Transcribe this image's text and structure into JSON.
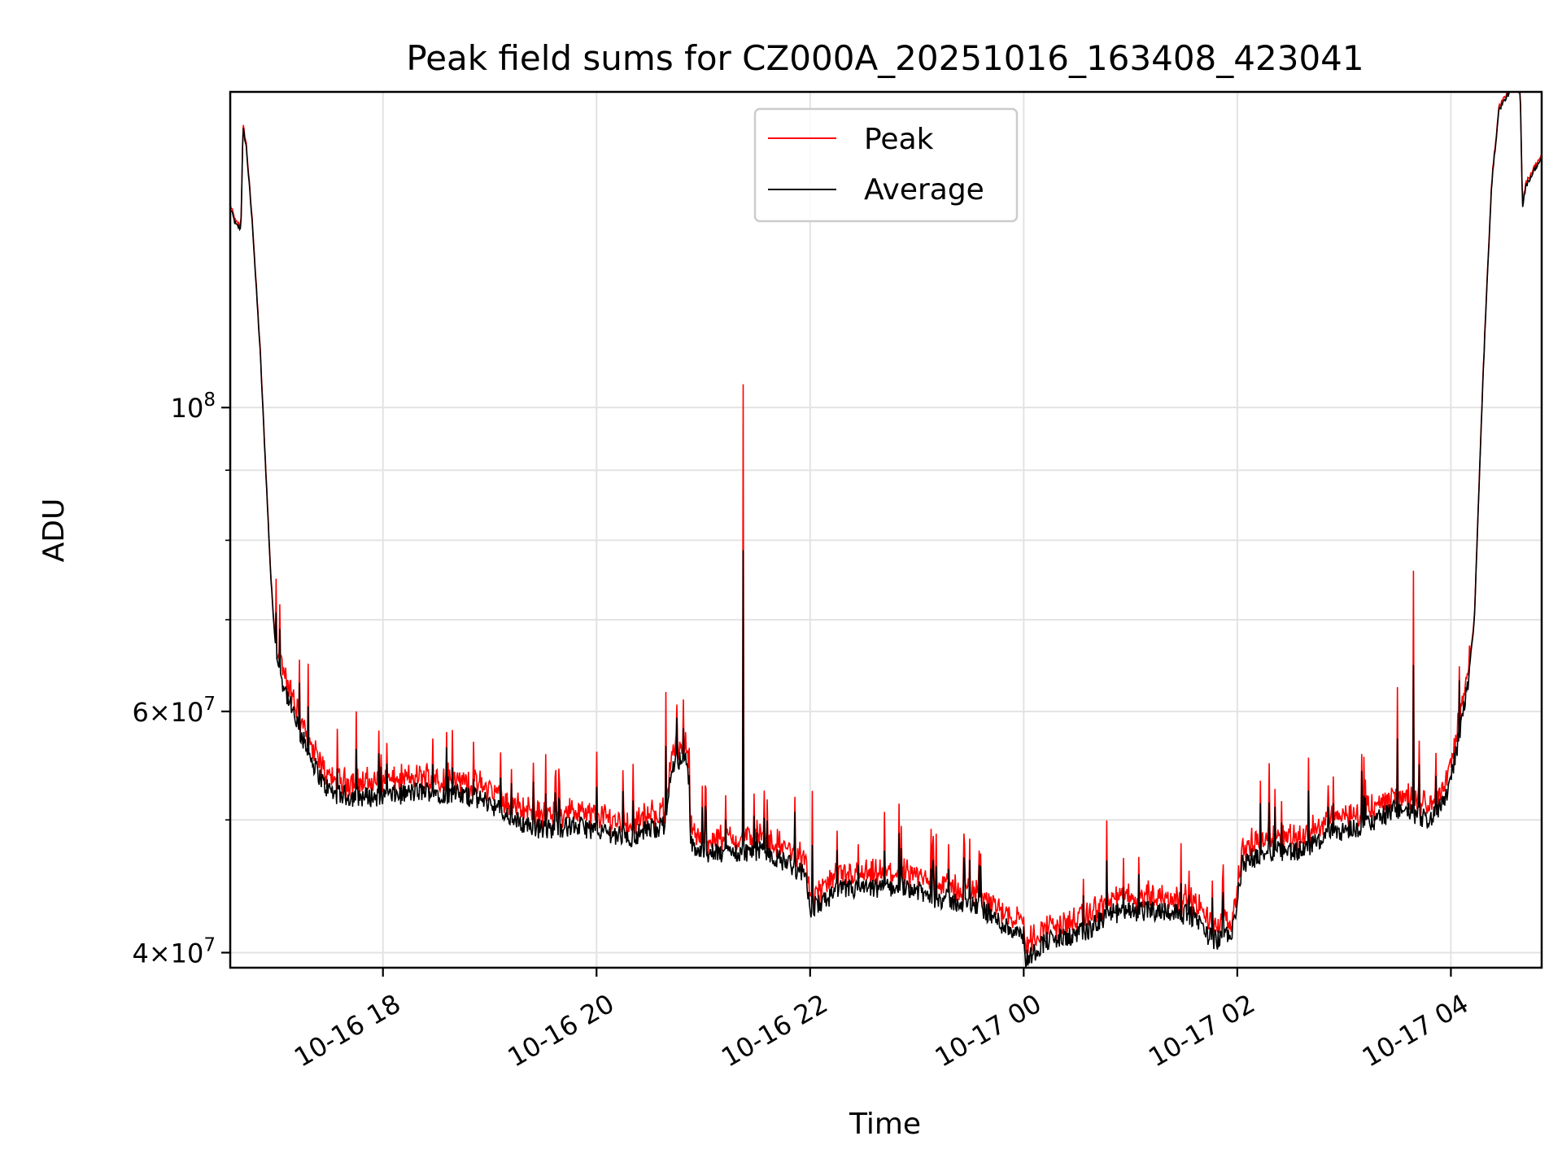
{
  "chart_data": {
    "type": "line",
    "title": "Peak field sums for CZ000A_20251016_163408_423041",
    "xlabel": "Time",
    "ylabel": "ADU",
    "yscale": "log",
    "grid": true,
    "legend_position": "top-center",
    "xlim_hours": [
      16.57,
      28.85
    ],
    "ylim": [
      39000000,
      170000000
    ],
    "x_ticks": [
      {
        "label": "10-16 18",
        "hour": 18
      },
      {
        "label": "10-16 20",
        "hour": 20
      },
      {
        "label": "10-16 22",
        "hour": 22
      },
      {
        "label": "10-17 00",
        "hour": 24
      },
      {
        "label": "10-17 02",
        "hour": 26
      },
      {
        "label": "10-17 04",
        "hour": 28
      }
    ],
    "y_ticks": [
      {
        "value": 100000000,
        "base": "10",
        "exp": "8"
      },
      {
        "value": 60000000,
        "base": "6×10",
        "exp": "7"
      },
      {
        "value": 40000000,
        "base": "4×10",
        "exp": "7"
      }
    ],
    "y_minor_gridlines": [
      50000000,
      70000000,
      80000000,
      90000000
    ],
    "series": [
      {
        "name": "Peak",
        "color": "#ff0000"
      },
      {
        "name": "Average",
        "color": "#000000"
      }
    ],
    "average_hours": [
      16.57,
      16.62,
      16.67,
      16.69,
      16.72,
      16.78,
      16.85,
      16.95,
      17.0,
      17.05,
      17.12,
      17.2,
      17.3,
      17.45,
      17.55,
      17.7,
      18.0,
      18.4,
      18.8,
      19.0,
      19.2,
      19.5,
      19.8,
      20.1,
      20.3,
      20.5,
      20.65,
      20.7,
      20.85,
      20.88,
      21.0,
      21.3,
      21.5,
      21.8,
      21.95,
      22.0,
      22.3,
      22.6,
      22.9,
      23.1,
      23.4,
      23.6,
      23.75,
      23.9,
      23.97,
      24.02,
      24.2,
      24.4,
      24.6,
      24.8,
      25.0,
      25.3,
      25.6,
      25.75,
      25.85,
      25.95,
      26.05,
      26.3,
      26.6,
      26.9,
      27.2,
      27.5,
      27.8,
      27.95,
      28.05,
      28.15,
      28.22,
      28.3,
      28.38,
      28.45,
      28.55,
      28.6,
      28.65,
      28.67,
      28.7,
      28.8,
      28.85
    ],
    "average_values": [
      140000000.0,
      136000000.0,
      135000000.0,
      160000000.0,
      155000000.0,
      135000000.0,
      110000000.0,
      75000000.0,
      66000000.0,
      63500000.0,
      61000000.0,
      58500000.0,
      56000000.0,
      53000000.0,
      52200000.0,
      52000000.0,
      52000000.0,
      52500000.0,
      52000000.0,
      51500000.0,
      50000000.0,
      49200000.0,
      49500000.0,
      49000000.0,
      48500000.0,
      49300000.0,
      49500000.0,
      55000000.0,
      55500000.0,
      48000000.0,
      47200000.0,
      47300000.0,
      47500000.0,
      46500000.0,
      45500000.0,
      43000000.0,
      44500000.0,
      44500000.0,
      44800000.0,
      44000000.0,
      43500000.0,
      43200000.0,
      42200000.0,
      41500000.0,
      41800000.0,
      39500000.0,
      40800000.0,
      41000000.0,
      41500000.0,
      42700000.0,
      42800000.0,
      43000000.0,
      42500000.0,
      41000000.0,
      40800000.0,
      41300000.0,
      46500000.0,
      47500000.0,
      47500000.0,
      49000000.0,
      49500000.0,
      51000000.0,
      50000000.0,
      52000000.0,
      56000000.0,
      62000000.0,
      70000000.0,
      105000000.0,
      145000000.0,
      165000000.0,
      170000000.0,
      172000000.0,
      170000000.0,
      140000000.0,
      145000000.0,
      150000000.0,
      152000000.0
    ],
    "peak_spikes": [
      {
        "hour": 17.0,
        "value": 75000000.0
      },
      {
        "hour": 17.3,
        "value": 65000000.0
      },
      {
        "hour": 17.75,
        "value": 60000000.0
      },
      {
        "hour": 19.1,
        "value": 56000000.0
      },
      {
        "hour": 19.65,
        "value": 54500000.0
      },
      {
        "hour": 20.65,
        "value": 62000000.0
      },
      {
        "hour": 21.37,
        "value": 104000000.0
      },
      {
        "hour": 21.5,
        "value": 50000000.0
      },
      {
        "hour": 22.02,
        "value": 52500000.0
      },
      {
        "hour": 22.45,
        "value": 48000000.0
      },
      {
        "hour": 22.85,
        "value": 49500000.0
      },
      {
        "hour": 23.3,
        "value": 48000000.0
      },
      {
        "hour": 23.45,
        "value": 48000000.0
      },
      {
        "hour": 24.0,
        "value": 42500000.0
      },
      {
        "hour": 25.1,
        "value": 43800000.0
      },
      {
        "hour": 26.3,
        "value": 55000000.0
      },
      {
        "hour": 26.85,
        "value": 53000000.0
      },
      {
        "hour": 27.2,
        "value": 53500000.0
      },
      {
        "hour": 27.5,
        "value": 62500000.0
      },
      {
        "hour": 27.65,
        "value": 76000000.0
      }
    ]
  }
}
